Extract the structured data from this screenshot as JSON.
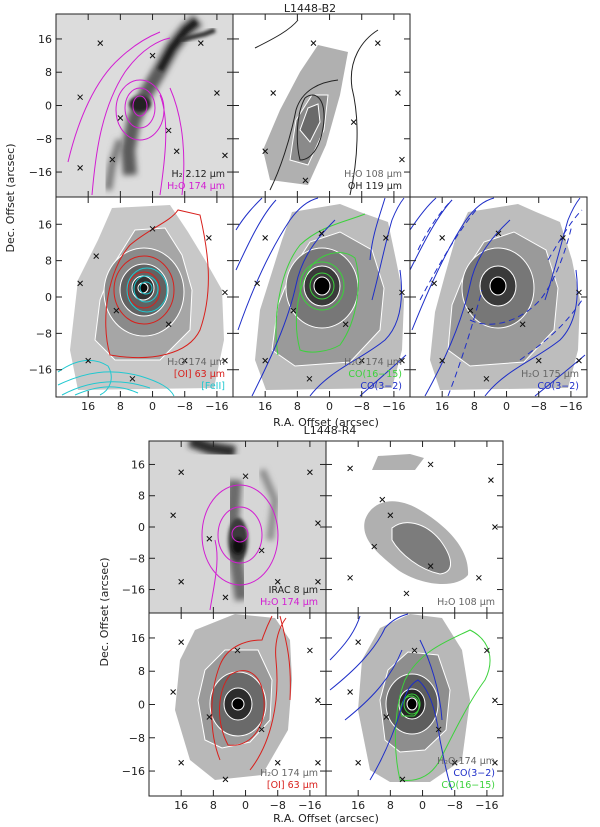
{
  "figure": {
    "title_top": "L1448-B2",
    "title_bottom": "L1448-R4",
    "xlabel": "R.A. Offset (arcsec)",
    "ylabel": "Dec. Offset (arcsec)"
  },
  "colors": {
    "magenta": "#d21ed2",
    "red": "#d8201c",
    "cyan": "#20c8d0",
    "green": "#3cd23c",
    "blue": "#1e2ec8",
    "dark": "#222222"
  },
  "chart_data": {
    "type": "contour-map-grid",
    "x_range_arcsec": [
      24,
      -20
    ],
    "y_range_arcsec": [
      -22,
      22
    ],
    "x_ticks": [
      16,
      8,
      0,
      -8,
      -16
    ],
    "y_ticks": [
      16,
      8,
      0,
      -8,
      -16
    ],
    "x_tick_labels": [
      "16",
      "8",
      "0",
      "−8",
      "−16"
    ],
    "y_tick_labels": [
      "16",
      "8",
      "0",
      "−8",
      "−16"
    ],
    "panels": [
      {
        "id": "b2-a",
        "group": "L1448-B2",
        "background": "grayscale image",
        "labels": [
          {
            "text": "H₂ 2.12 μm",
            "color": "dark"
          },
          {
            "text": "H₂O 174 μm",
            "color": "magenta"
          }
        ]
      },
      {
        "id": "b2-b",
        "group": "L1448-B2",
        "background": "filled contours",
        "labels": [
          {
            "text": "H₂O 108 μm",
            "color": "gray"
          },
          {
            "text": "OH 119 μm",
            "color": "dark"
          }
        ]
      },
      {
        "id": "b2-c",
        "group": "L1448-B2",
        "background": "filled contours",
        "labels": [
          {
            "text": "H₂O 174 μm",
            "color": "gray"
          },
          {
            "text": "[OI] 63 μm",
            "color": "red"
          },
          {
            "text": "[FeII]",
            "color": "cyan"
          }
        ]
      },
      {
        "id": "b2-d",
        "group": "L1448-B2",
        "background": "filled contours",
        "labels": [
          {
            "text": "H₂O 174 μm",
            "color": "gray"
          },
          {
            "text": "CO(16−15)",
            "color": "green"
          },
          {
            "text": "CO(3−2)",
            "color": "blue"
          }
        ]
      },
      {
        "id": "b2-e",
        "group": "L1448-B2",
        "background": "filled contours",
        "labels": [
          {
            "text": "H₂O 175 μm",
            "color": "gray"
          },
          {
            "text": "CO(3−2)",
            "color": "blue"
          }
        ]
      },
      {
        "id": "r4-a",
        "group": "L1448-R4",
        "background": "grayscale image",
        "labels": [
          {
            "text": "IRAC 8 μm",
            "color": "dark"
          },
          {
            "text": "H₂O 174 μm",
            "color": "magenta"
          }
        ]
      },
      {
        "id": "r4-b",
        "group": "L1448-R4",
        "background": "filled contours",
        "labels": [
          {
            "text": "H₂O 108 μm",
            "color": "gray"
          }
        ]
      },
      {
        "id": "r4-c",
        "group": "L1448-R4",
        "background": "filled contours",
        "labels": [
          {
            "text": "H₂O 174 μm",
            "color": "gray"
          },
          {
            "text": "[OI] 63 μm",
            "color": "red"
          }
        ]
      },
      {
        "id": "r4-d",
        "group": "L1448-R4",
        "background": "filled contours",
        "labels": [
          {
            "text": "H₂O 174 μm",
            "color": "gray"
          },
          {
            "text": "CO(3−2)",
            "color": "blue"
          },
          {
            "text": "CO(16−15)",
            "color": "green"
          }
        ]
      }
    ]
  }
}
